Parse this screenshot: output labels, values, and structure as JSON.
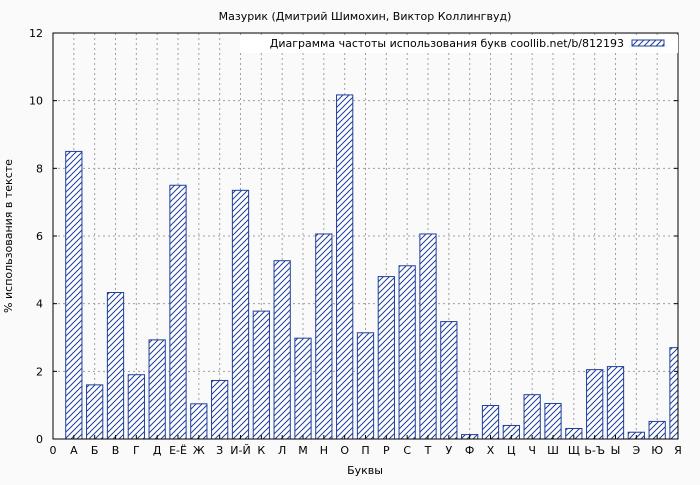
{
  "chart_data": {
    "type": "bar",
    "title": "Мазурик (Дмитрий Шимохин, Виктор Коллингвуд)",
    "xlabel": "Буквы",
    "ylabel": "% использования в тексте",
    "ylim": [
      0,
      12
    ],
    "yticks": [
      0,
      2,
      4,
      6,
      8,
      10,
      12
    ],
    "grid": true,
    "legend_position": "top-right",
    "x_tick_labels": [
      "0",
      "А",
      "Б",
      "В",
      "Г",
      "Д",
      "Е-Ё",
      "Ж",
      "З",
      "И-Й",
      "К",
      "Л",
      "М",
      "Н",
      "О",
      "П",
      "Р",
      "С",
      "Т",
      "У",
      "Ф",
      "Х",
      "Ц",
      "Ч",
      "Ш",
      "Щ",
      "Ь-Ъ",
      "Ы",
      "Э",
      "Ю",
      "Я"
    ],
    "categories": [
      "А",
      "Б",
      "В",
      "Г",
      "Д",
      "Е-Ё",
      "Ж",
      "З",
      "И-Й",
      "К",
      "Л",
      "М",
      "Н",
      "О",
      "П",
      "Р",
      "С",
      "Т",
      "У",
      "Ф",
      "Х",
      "Ц",
      "Ч",
      "Ш",
      "Щ",
      "Ь-Ъ",
      "Ы",
      "Э",
      "Ю",
      "Я"
    ],
    "series": [
      {
        "name": "Диаграмма частоты использования букв coollib.net/b/812193",
        "values": [
          8.5,
          1.6,
          4.33,
          1.9,
          2.93,
          7.5,
          1.04,
          1.73,
          7.35,
          3.78,
          5.27,
          2.98,
          6.06,
          10.17,
          3.14,
          4.8,
          5.12,
          6.06,
          3.47,
          0.13,
          0.99,
          0.4,
          1.31,
          1.05,
          0.31,
          2.05,
          2.14,
          0.2,
          0.52,
          2.7
        ],
        "color": "#1f3f9c"
      }
    ]
  }
}
